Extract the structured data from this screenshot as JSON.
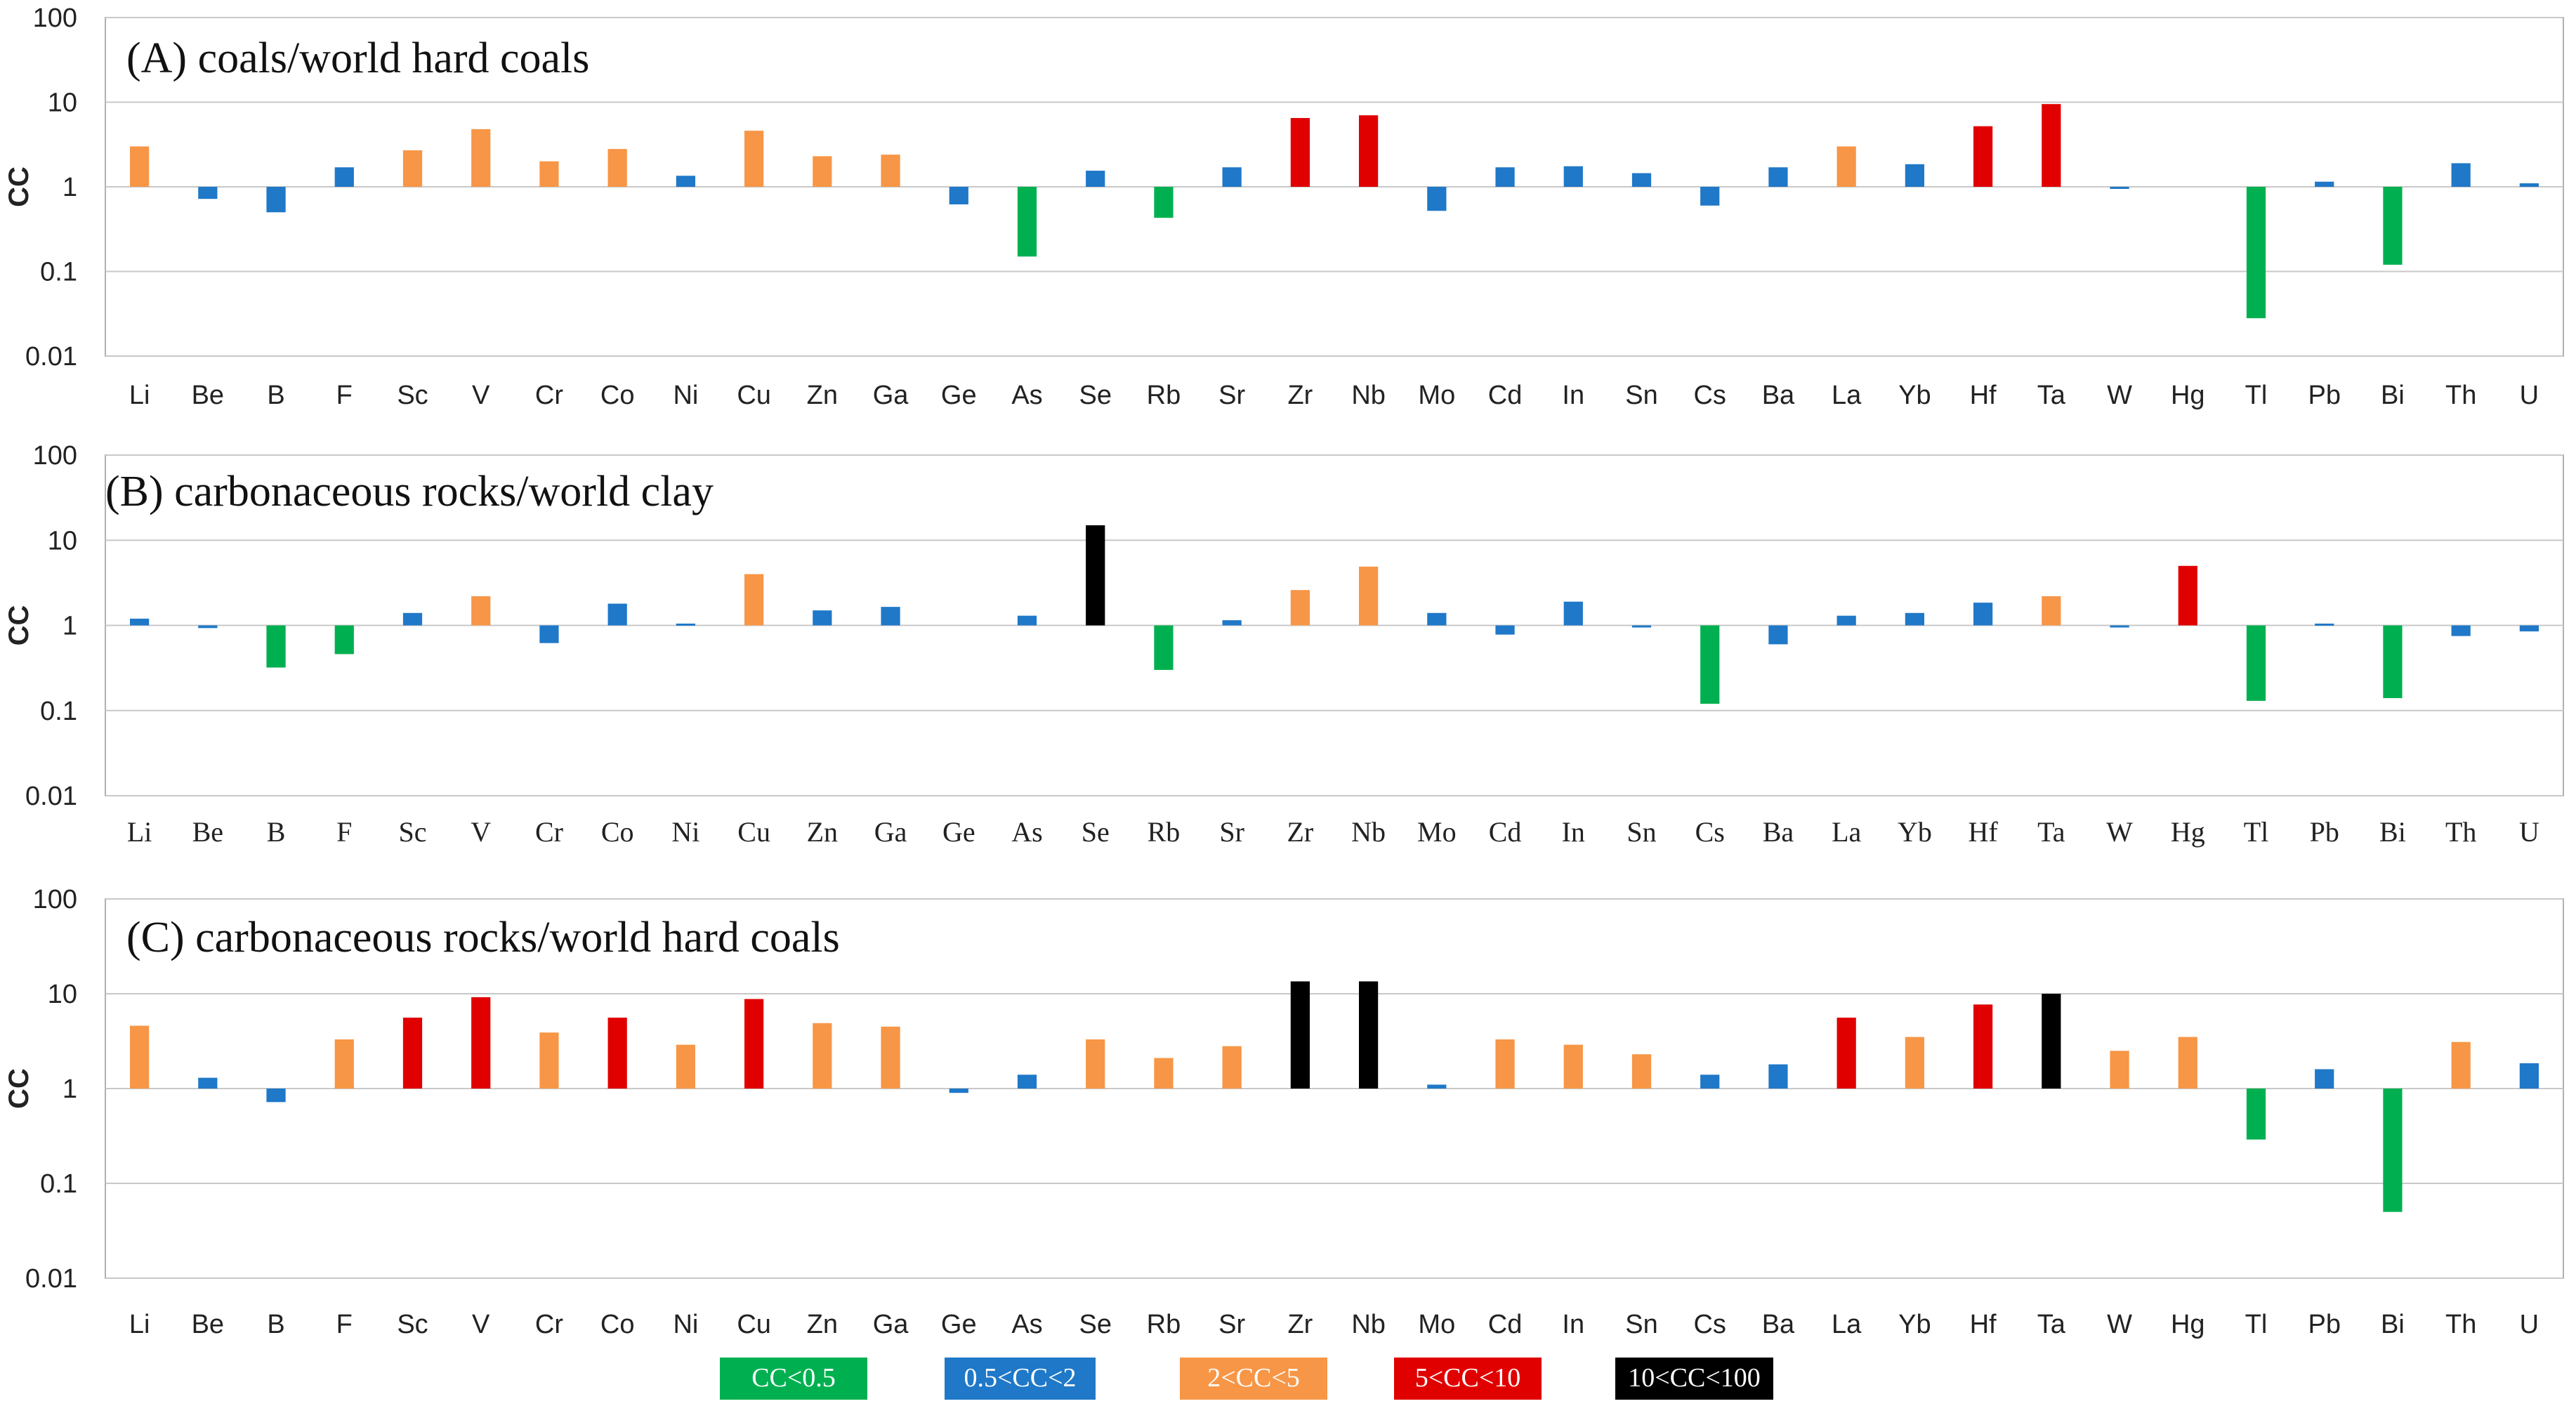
{
  "chart_data": [
    {
      "type": "bar",
      "id": "A",
      "title": "(A) coals/world  hard coals",
      "ylabel": "CC",
      "yscale": "log",
      "ylim": [
        0.01,
        100
      ],
      "yticks": [
        "0.01",
        "0.1",
        "1",
        "10",
        "100"
      ],
      "categories": [
        "Li",
        "Be",
        "B",
        "F",
        "Sc",
        "V",
        "Cr",
        "Co",
        "Ni",
        "Cu",
        "Zn",
        "Ga",
        "Ge",
        "As",
        "Se",
        "Rb",
        "Sr",
        "Zr",
        "Nb",
        "Mo",
        "Cd",
        "In",
        "Sn",
        "Cs",
        "Ba",
        "La",
        "Yb",
        "Hf",
        "Ta",
        "W",
        "Hg",
        "Tl",
        "Pb",
        "Bi",
        "Th",
        "U"
      ],
      "values": [
        3.0,
        0.72,
        0.5,
        1.7,
        2.7,
        4.8,
        2.0,
        2.8,
        1.35,
        4.6,
        2.3,
        2.4,
        0.62,
        0.15,
        1.55,
        0.43,
        1.7,
        6.5,
        7.0,
        0.52,
        1.7,
        1.75,
        1.45,
        0.6,
        1.7,
        3.0,
        1.85,
        5.2,
        9.5,
        0.95,
        null,
        0.028,
        1.15,
        0.12,
        1.9,
        1.1
      ]
    },
    {
      "type": "bar",
      "id": "B",
      "title": "(B) carbonaceous rocks/world clay",
      "ylabel": "CC",
      "yscale": "log",
      "ylim": [
        0.01,
        100
      ],
      "yticks": [
        "0.01",
        "0.1",
        "1",
        "10",
        "100"
      ],
      "categories": [
        "Li",
        "Be",
        "B",
        "F",
        "Sc",
        "V",
        "Cr",
        "Co",
        "Ni",
        "Cu",
        "Zn",
        "Ga",
        "Ge",
        "As",
        "Se",
        "Rb",
        "Sr",
        "Zr",
        "Nb",
        "Mo",
        "Cd",
        "In",
        "Sn",
        "Cs",
        "Ba",
        "La",
        "Yb",
        "Hf",
        "Ta",
        "W",
        "Hg",
        "Tl",
        "Pb",
        "Bi",
        "Th",
        "U"
      ],
      "values": [
        1.2,
        0.93,
        0.32,
        0.46,
        1.4,
        2.2,
        0.62,
        1.8,
        1.05,
        4.0,
        1.5,
        1.65,
        null,
        1.3,
        15.0,
        0.3,
        1.15,
        2.6,
        4.9,
        1.4,
        0.78,
        1.9,
        0.95,
        0.12,
        0.6,
        1.3,
        1.4,
        1.85,
        2.2,
        0.95,
        5.0,
        0.13,
        1.05,
        0.14,
        0.75,
        0.85
      ]
    },
    {
      "type": "bar",
      "id": "C",
      "title": "(C) carbonaceous rocks/world hard coals",
      "ylabel": "CC",
      "yscale": "log",
      "ylim": [
        0.01,
        100
      ],
      "yticks": [
        "0.01",
        "0.1",
        "1",
        "10",
        "100"
      ],
      "categories": [
        "Li",
        "Be",
        "B",
        "F",
        "Sc",
        "V",
        "Cr",
        "Co",
        "Ni",
        "Cu",
        "Zn",
        "Ga",
        "Ge",
        "As",
        "Se",
        "Rb",
        "Sr",
        "Zr",
        "Nb",
        "Mo",
        "Cd",
        "In",
        "Sn",
        "Cs",
        "Ba",
        "La",
        "Yb",
        "Hf",
        "Ta",
        "W",
        "Hg",
        "Tl",
        "Pb",
        "Bi",
        "Th",
        "U"
      ],
      "values": [
        4.6,
        1.3,
        0.72,
        3.3,
        5.6,
        9.2,
        3.9,
        5.6,
        2.9,
        8.8,
        4.9,
        4.5,
        0.9,
        1.4,
        3.3,
        2.1,
        2.8,
        13.5,
        13.5,
        1.1,
        3.3,
        2.9,
        2.3,
        1.4,
        1.8,
        5.6,
        3.5,
        7.7,
        10.0,
        2.5,
        3.5,
        0.29,
        1.6,
        0.05,
        3.1,
        1.85
      ]
    }
  ],
  "legend": [
    {
      "label": "CC<0.5",
      "color": "#00b050"
    },
    {
      "label": "0.5<CC<2",
      "color": "#1f78c8"
    },
    {
      "label": "2<CC<5",
      "color": "#f79646"
    },
    {
      "label": "5<CC<10",
      "color": "#e00000"
    },
    {
      "label": "10<CC<100",
      "color": "#000000"
    }
  ],
  "thresholds": {
    "t1": 0.5,
    "t2": 2,
    "t3": 5,
    "t4": 10
  }
}
